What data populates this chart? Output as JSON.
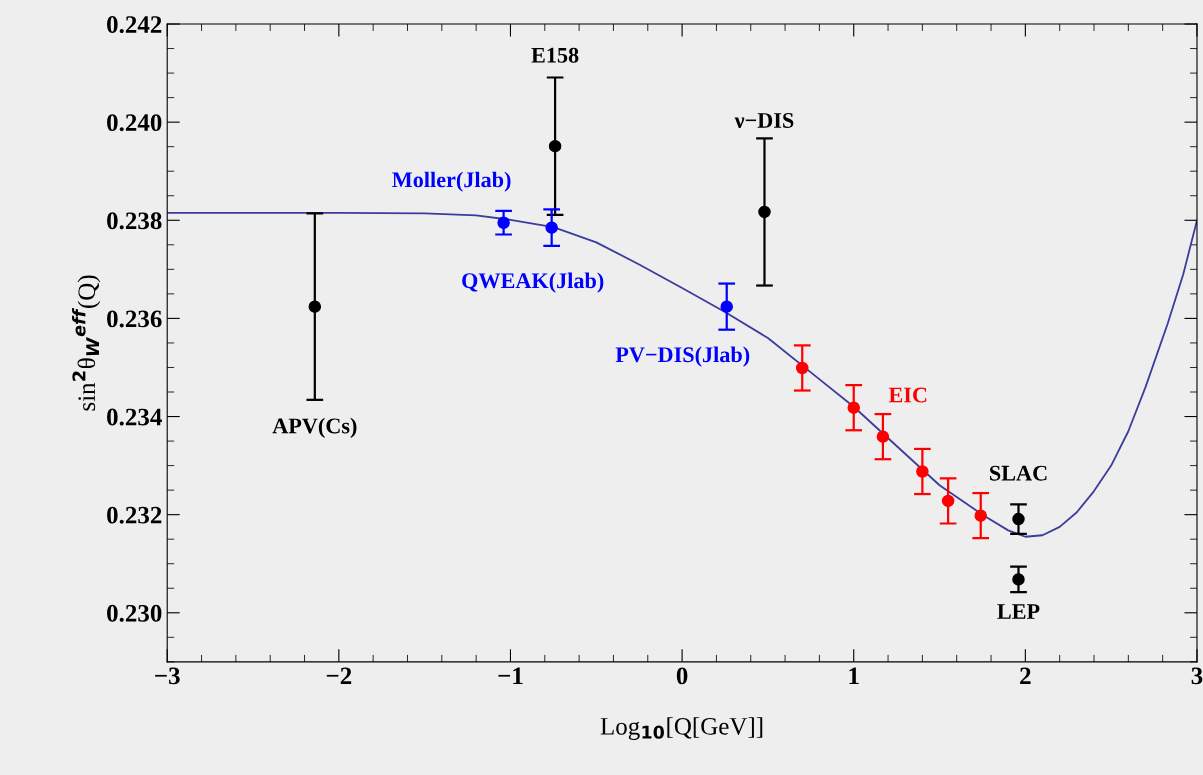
{
  "chart_data": {
    "type": "scatter",
    "xlabel": "Log$_{10}$[Q[GeV]]",
    "ylabel": "sin$^{2}$θ$_{W}$$^{eff}$(Q)",
    "xlim": [
      -3,
      3
    ],
    "xticks": [
      -3,
      -2,
      -1,
      0,
      1,
      2,
      3
    ],
    "ylim": [
      0.229,
      0.242
    ],
    "yticks": [
      {
        "value": 0.23,
        "label": "0.230"
      },
      {
        "value": 0.232,
        "label": "0.232"
      },
      {
        "value": 0.234,
        "label": "0.234"
      },
      {
        "value": 0.236,
        "label": "0.236"
      },
      {
        "value": 0.238,
        "label": "0.238"
      },
      {
        "value": 0.24,
        "label": "0.240"
      },
      {
        "value": 0.242,
        "label": "0.242"
      }
    ],
    "grid": false,
    "marker": "circle",
    "annotations": [
      {
        "text": "APV(Cs)",
        "x": -2.14,
        "y": 0.23434
      },
      {
        "text": "ν−DIS",
        "x": 0.48,
        "y": 0.23967
      },
      {
        "text": "SLAC",
        "x": 1.96,
        "y": 0.23191
      }
    ],
    "series": [
      {
        "type": "line",
        "marker": "none",
        "color": "#3c3c9c",
        "x": [
          -3,
          -2,
          -1.5,
          -1.2,
          -1.0,
          -0.75,
          -0.5,
          -0.25,
          0,
          0.25,
          0.5,
          0.75,
          1.0,
          1.25,
          1.5,
          1.75,
          1.9,
          2.0,
          2.1,
          2.2,
          2.3,
          2.4,
          2.5,
          2.6,
          2.7,
          2.83,
          2.92,
          3.0
        ],
        "values": [
          0.23815,
          0.23815,
          0.23814,
          0.2381,
          0.23801,
          0.23786,
          0.23755,
          0.2371,
          0.23662,
          0.23613,
          0.2356,
          0.2349,
          0.2342,
          0.2334,
          0.2326,
          0.232,
          0.23168,
          0.23155,
          0.23158,
          0.23175,
          0.23205,
          0.23248,
          0.233,
          0.2337,
          0.2346,
          0.2359,
          0.2369,
          0.238
        ]
      },
      {
        "color": "#000000",
        "x": [
          -2.14
        ],
        "values": [
          0.23624
        ],
        "errors": [
          0.0019
        ]
      },
      {
        "name": "E158",
        "color": "#000000",
        "x": [
          -0.74
        ],
        "values": [
          0.23951
        ],
        "errors": [
          0.0014
        ]
      },
      {
        "name": "Moller(Jlab)",
        "color": "#0000ff",
        "x": [
          -1.04
        ],
        "values": [
          0.23795
        ],
        "errors": [
          0.00024
        ]
      },
      {
        "name": "QWEAK(Jlab)",
        "color": "#0000ff",
        "x": [
          -0.76
        ],
        "values": [
          0.23785
        ],
        "errors": [
          0.00037
        ]
      },
      {
        "name": "PV−DIS(Jlab)",
        "color": "#0000ff",
        "x": [
          0.26
        ],
        "values": [
          0.23624
        ],
        "errors": [
          0.00047
        ]
      },
      {
        "color": "#000000",
        "x": [
          0.48
        ],
        "values": [
          0.23817
        ],
        "errors": [
          0.0015
        ]
      },
      {
        "name": "EIC",
        "color": "#ff0000",
        "x": [
          0.7,
          1.0,
          1.17,
          1.4,
          1.55,
          1.74
        ],
        "values": [
          0.23499,
          0.23418,
          0.23359,
          0.23288,
          0.23228,
          0.23198
        ],
        "errors": [
          0.00046,
          0.00046,
          0.00046,
          0.00046,
          0.00046,
          0.00046
        ]
      },
      {
        "color": "#000000",
        "x": [
          1.96
        ],
        "values": [
          0.23191
        ],
        "errors": [
          0.0003
        ]
      },
      {
        "name": "LEP",
        "color": "#000000",
        "x": [
          1.96
        ],
        "values": [
          0.23068
        ],
        "errors": [
          0.00026
        ]
      }
    ]
  }
}
